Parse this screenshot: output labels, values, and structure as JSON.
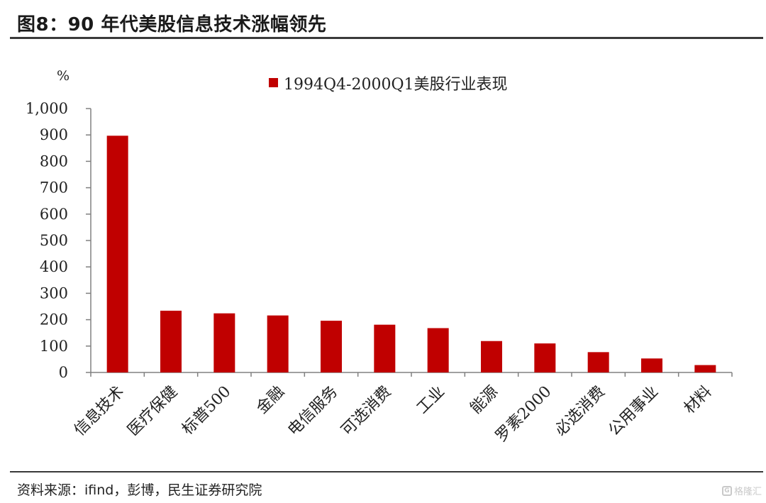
{
  "header": {
    "title": "图8：90 年代美股信息技术涨幅领先"
  },
  "footer": {
    "source": "资料来源：ifind，彭博，民生证券研究院"
  },
  "watermark": {
    "text": "格隆汇",
    "icon": "gelonghui-logo-icon"
  },
  "colors": {
    "bar": "#C00000",
    "axis": "#808080",
    "text": "#222222",
    "rule": "#3a3a3a"
  },
  "chart_data": {
    "type": "bar",
    "unit_label": "%",
    "legend_position": "top-center",
    "grid": false,
    "ylim": [
      0,
      1000
    ],
    "yticks": [
      0,
      100,
      200,
      300,
      400,
      500,
      600,
      700,
      800,
      900,
      1000
    ],
    "ytick_labels": [
      "0",
      "100",
      "200",
      "300",
      "400",
      "500",
      "600",
      "700",
      "800",
      "900",
      "1,000"
    ],
    "categories": [
      "信息技术",
      "医疗保健",
      "标普500",
      "金融",
      "电信服务",
      "可选消费",
      "工业",
      "能源",
      "罗素2000",
      "必选消费",
      "公用事业",
      "材料"
    ],
    "series": [
      {
        "name": "1994Q4-2000Q1美股行业表现",
        "values": [
          897,
          234,
          224,
          216,
          196,
          181,
          168,
          119,
          110,
          77,
          53,
          28
        ]
      }
    ]
  }
}
